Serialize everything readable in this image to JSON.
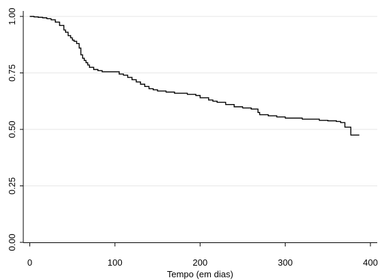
{
  "chart_data": {
    "type": "line",
    "subtype": "kaplan-meier step curve",
    "title": "",
    "xlabel": "Tempo (em dias)",
    "ylabel": "",
    "xlim": [
      0,
      400
    ],
    "ylim": [
      0,
      1
    ],
    "x_ticks": [
      0,
      100,
      200,
      300,
      400
    ],
    "x_tick_labels": [
      "0",
      "100",
      "200",
      "300",
      "400"
    ],
    "y_ticks": [
      0,
      0.25,
      0.5,
      0.75,
      1
    ],
    "y_tick_labels": [
      "0.00",
      "0.25",
      "0.50",
      "0.75",
      "1.00"
    ],
    "grid": "horizontal",
    "legend": "none",
    "colors": {
      "line": "#000000",
      "grid": "#e6e6e6",
      "axis": "#000000"
    },
    "series": [
      {
        "x": [
          0,
          5,
          10,
          15,
          20,
          25,
          30,
          35,
          40,
          42,
          45,
          48,
          50,
          52,
          55,
          58,
          60,
          62,
          64,
          66,
          68,
          70,
          75,
          80,
          85,
          95,
          105,
          110,
          115,
          120,
          125,
          130,
          135,
          140,
          145,
          150,
          160,
          170,
          185,
          195,
          200,
          210,
          215,
          220,
          230,
          240,
          250,
          260,
          268,
          270,
          280,
          290,
          300,
          320,
          340,
          350,
          360,
          365,
          370,
          377,
          387
        ],
        "y": [
          1.0,
          0.998,
          0.996,
          0.994,
          0.99,
          0.985,
          0.975,
          0.96,
          0.94,
          0.93,
          0.915,
          0.905,
          0.895,
          0.89,
          0.88,
          0.86,
          0.83,
          0.815,
          0.805,
          0.795,
          0.785,
          0.775,
          0.765,
          0.76,
          0.755,
          0.755,
          0.745,
          0.74,
          0.73,
          0.72,
          0.71,
          0.7,
          0.69,
          0.68,
          0.675,
          0.67,
          0.665,
          0.66,
          0.655,
          0.65,
          0.64,
          0.63,
          0.625,
          0.62,
          0.61,
          0.6,
          0.595,
          0.59,
          0.575,
          0.565,
          0.56,
          0.555,
          0.55,
          0.545,
          0.54,
          0.538,
          0.535,
          0.53,
          0.51,
          0.475,
          0.475
        ]
      }
    ]
  }
}
